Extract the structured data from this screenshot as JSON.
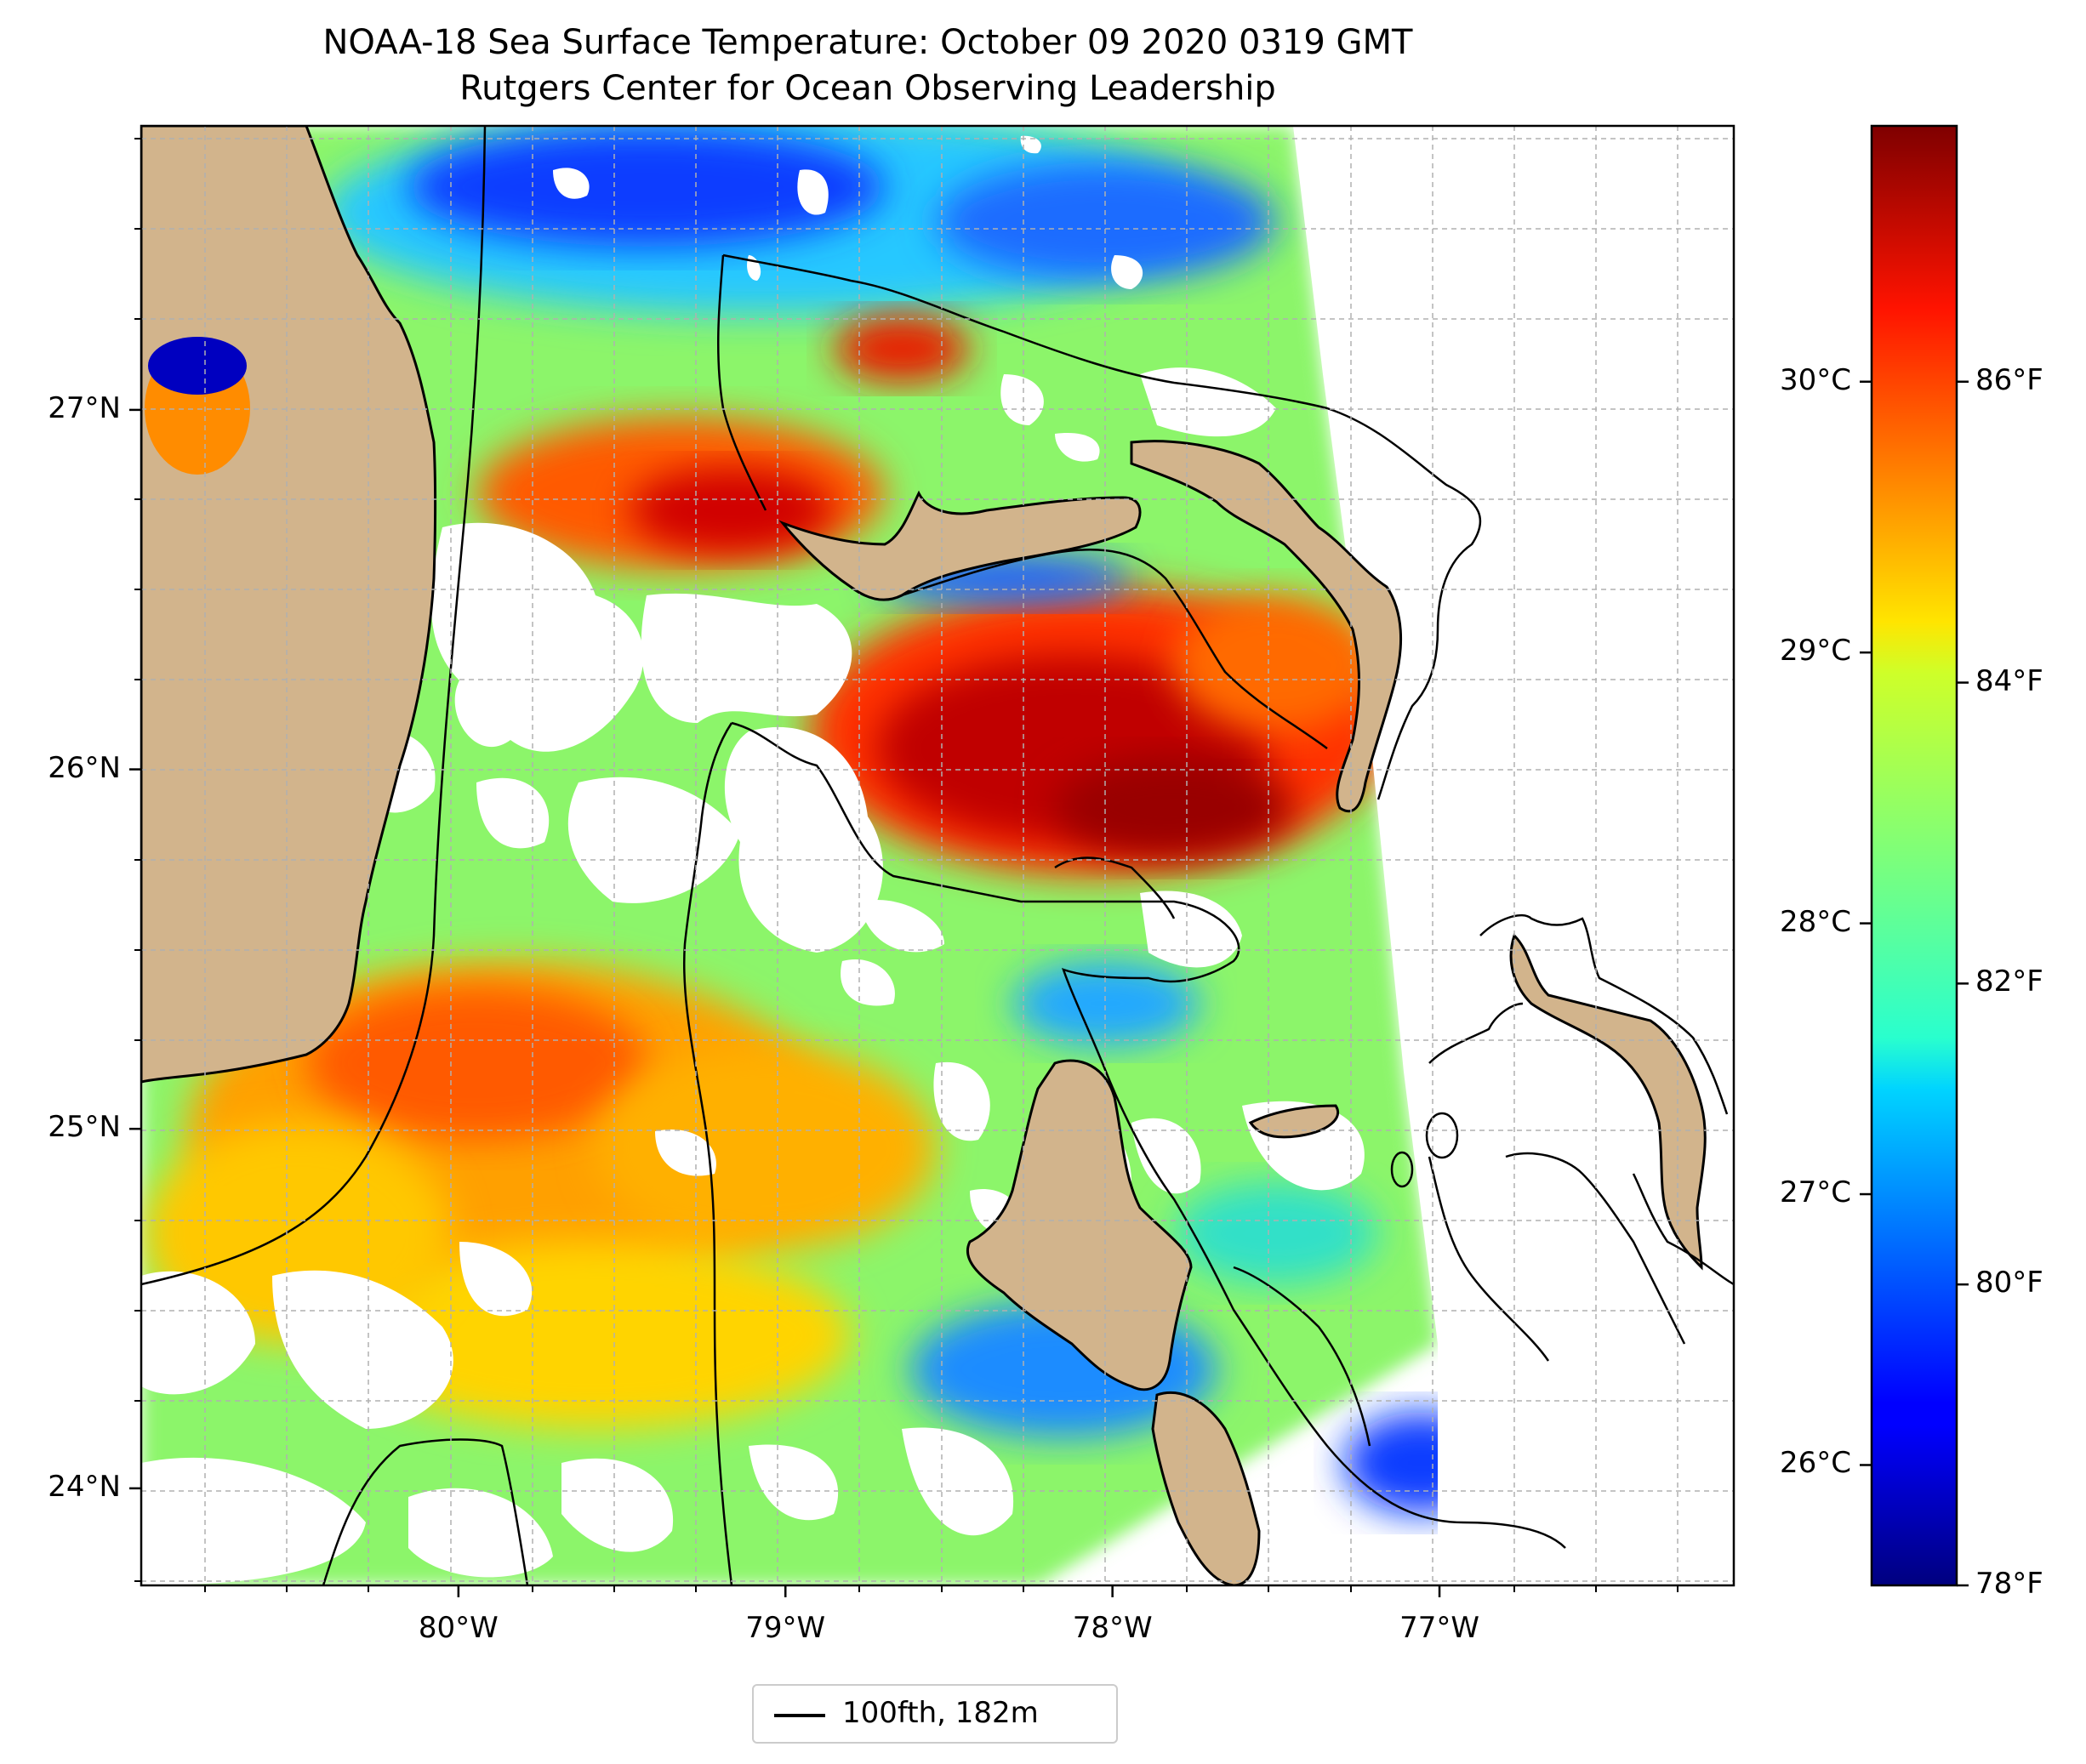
{
  "title_line1": "NOAA-18 Sea Surface Temperature: October 09 2020 0319 GMT",
  "title_line2": "Rutgers Center for Ocean Observing Leadership",
  "map": {
    "lon_ticks": [
      {
        "value": -80,
        "label": "80°W"
      },
      {
        "value": -79,
        "label": "79°W"
      },
      {
        "value": -78,
        "label": "78°W"
      },
      {
        "value": -77,
        "label": "77°W"
      }
    ],
    "lat_ticks": [
      {
        "value": 27,
        "label": "27°N"
      },
      {
        "value": 26,
        "label": "26°N"
      },
      {
        "value": 25,
        "label": "25°N"
      },
      {
        "value": 24,
        "label": "24°N"
      }
    ],
    "lon_range": [
      -80.97,
      -76.1
    ],
    "lat_range": [
      23.73,
      27.79
    ],
    "colors": {
      "land": "#d2b48c",
      "no_data": "#ffffff",
      "grid": "#b0b0b0"
    }
  },
  "colorbar": {
    "colormap": "jet",
    "celsius_ticks": [
      {
        "value": 30,
        "label": "30°C"
      },
      {
        "value": 29,
        "label": "29°C"
      },
      {
        "value": 28,
        "label": "28°C"
      },
      {
        "value": 27,
        "label": "27°C"
      },
      {
        "value": 26,
        "label": "26°C"
      }
    ],
    "fahrenheit_ticks": [
      {
        "value": 86,
        "label": "86°F"
      },
      {
        "value": 84,
        "label": "84°F"
      },
      {
        "value": 82,
        "label": "82°F"
      },
      {
        "value": 80,
        "label": "80°F"
      },
      {
        "value": 78,
        "label": "78°F"
      }
    ],
    "range_f": [
      78,
      87.7
    ]
  },
  "legend": {
    "label": "100fth, 182m"
  }
}
